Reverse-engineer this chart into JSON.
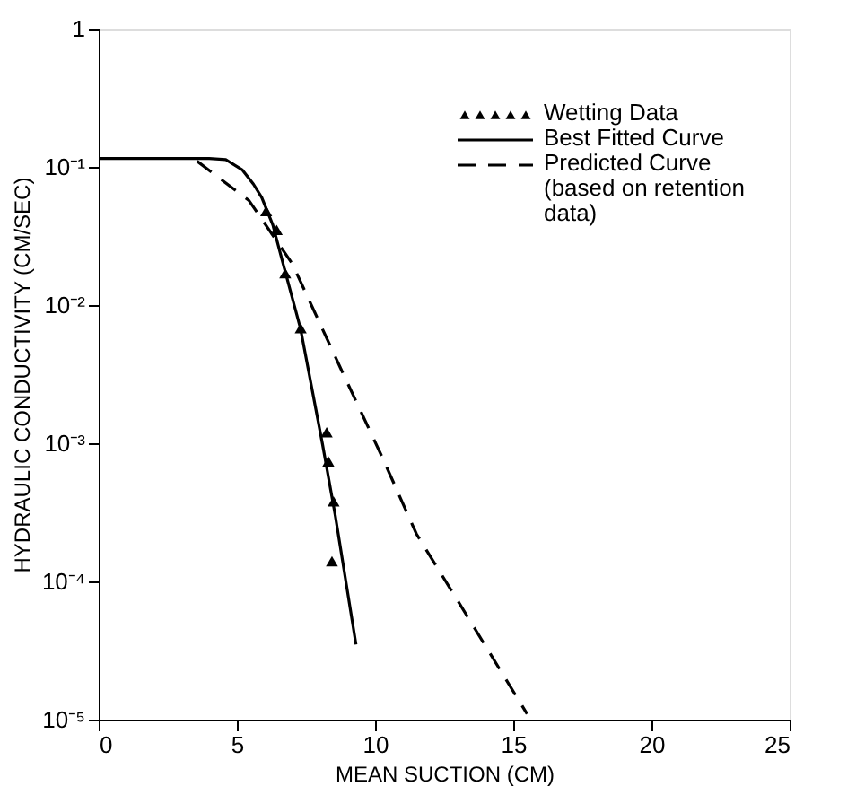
{
  "chart_data": {
    "type": "line",
    "xlabel": "MEAN SUCTION (CM)",
    "ylabel": "HYDRAULIC CONDUCTIVITY (CM/SEC)",
    "log": "y",
    "xlim": [
      0,
      25
    ],
    "xticks": [
      0,
      5,
      10,
      15,
      20,
      25
    ],
    "ylim": [
      1e-05,
      1
    ],
    "yticks": [
      {
        "value": 1e-05,
        "label": "10⁻⁵"
      },
      {
        "value": 0.0001,
        "label": "10⁻⁴"
      },
      {
        "value": 0.001,
        "label": "10⁻³"
      },
      {
        "value": 0.01,
        "label": "10⁻²"
      },
      {
        "value": 0.1,
        "label": "10⁻¹"
      },
      1
    ],
    "grid": false,
    "legend": "top right",
    "series": [
      {
        "name": "Wetting Data",
        "type": "scatter",
        "marker": "triangle",
        "color": "#000000",
        "x": [
          6.06,
          6.44,
          6.75,
          7.31,
          8.25,
          8.31,
          8.5,
          8.44
        ],
        "values": [
          0.048,
          0.035,
          0.017,
          0.0068,
          0.0012,
          0.00074,
          0.00038,
          0.00014
        ]
      },
      {
        "name": "Best Fitted Curve",
        "line_style": "solid",
        "color": "#000000",
        "x": [
          0,
          4,
          4.6,
          5.2,
          5.6,
          5.9,
          6.3,
          6.7,
          7.3,
          8.1,
          8.56,
          9.31
        ],
        "values": [
          0.115,
          0.115,
          0.113,
          0.095,
          0.075,
          0.06,
          0.038,
          0.019,
          0.0068,
          0.00098,
          0.0003,
          3.5e-05
        ]
      },
      {
        "name": "Predicted Curve\n(based on retention\ndata)",
        "line_style": "dashed",
        "color": "#000000",
        "x": [
          3.56,
          5.44,
          7.0,
          8.75,
          10.25,
          11.5,
          13,
          15.5
        ],
        "values": [
          0.11,
          0.057,
          0.02,
          0.0035,
          0.0008,
          0.00022,
          7.2e-05,
          1.1e-05
        ]
      }
    ]
  }
}
